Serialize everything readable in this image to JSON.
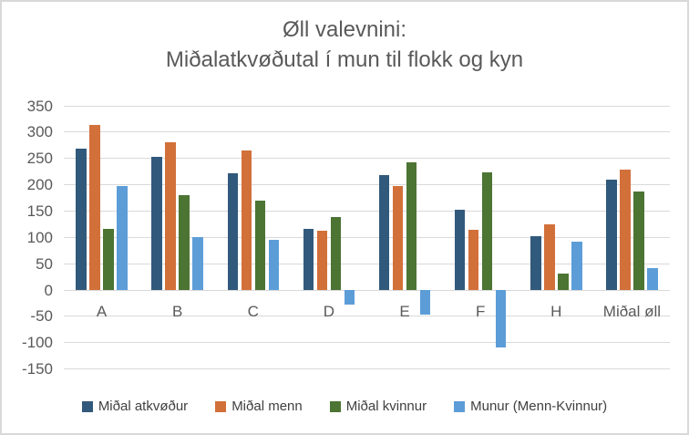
{
  "chart_data": {
    "type": "bar",
    "title": "Øll valevnini: Miðalatkvøðutal í mun til flokk og kyn",
    "title_lines": [
      "Øll valevnini:",
      "Miðalatkvøðutal í mun til flokk og kyn"
    ],
    "categories": [
      "A",
      "B",
      "C",
      "D",
      "E",
      "F",
      "H",
      "Miðal øll"
    ],
    "series": [
      {
        "name": "Miðal atkvøður",
        "color": "#31597B",
        "values": [
          268,
          253,
          222,
          116,
          218,
          153,
          103,
          210
        ]
      },
      {
        "name": "Miðal menn",
        "color": "#D2703A",
        "values": [
          313,
          281,
          265,
          112,
          197,
          114,
          124,
          228
        ]
      },
      {
        "name": "Miðal kvinnur",
        "color": "#4C7433",
        "values": [
          116,
          181,
          170,
          139,
          243,
          224,
          32,
          187
        ]
      },
      {
        "name": "Munur (Menn-Kvinnur)",
        "color": "#5C9DD8",
        "values": [
          197,
          100,
          95,
          -27,
          -46,
          -110,
          92,
          41
        ]
      }
    ],
    "ylim": [
      -150,
      350
    ],
    "yticks": [
      350,
      300,
      250,
      200,
      150,
      100,
      50,
      0,
      -50,
      -100,
      -150
    ],
    "xlabel": "",
    "ylabel": "",
    "grid": true,
    "gridline_color": "#D9D9D9",
    "legend_position": "bottom"
  }
}
